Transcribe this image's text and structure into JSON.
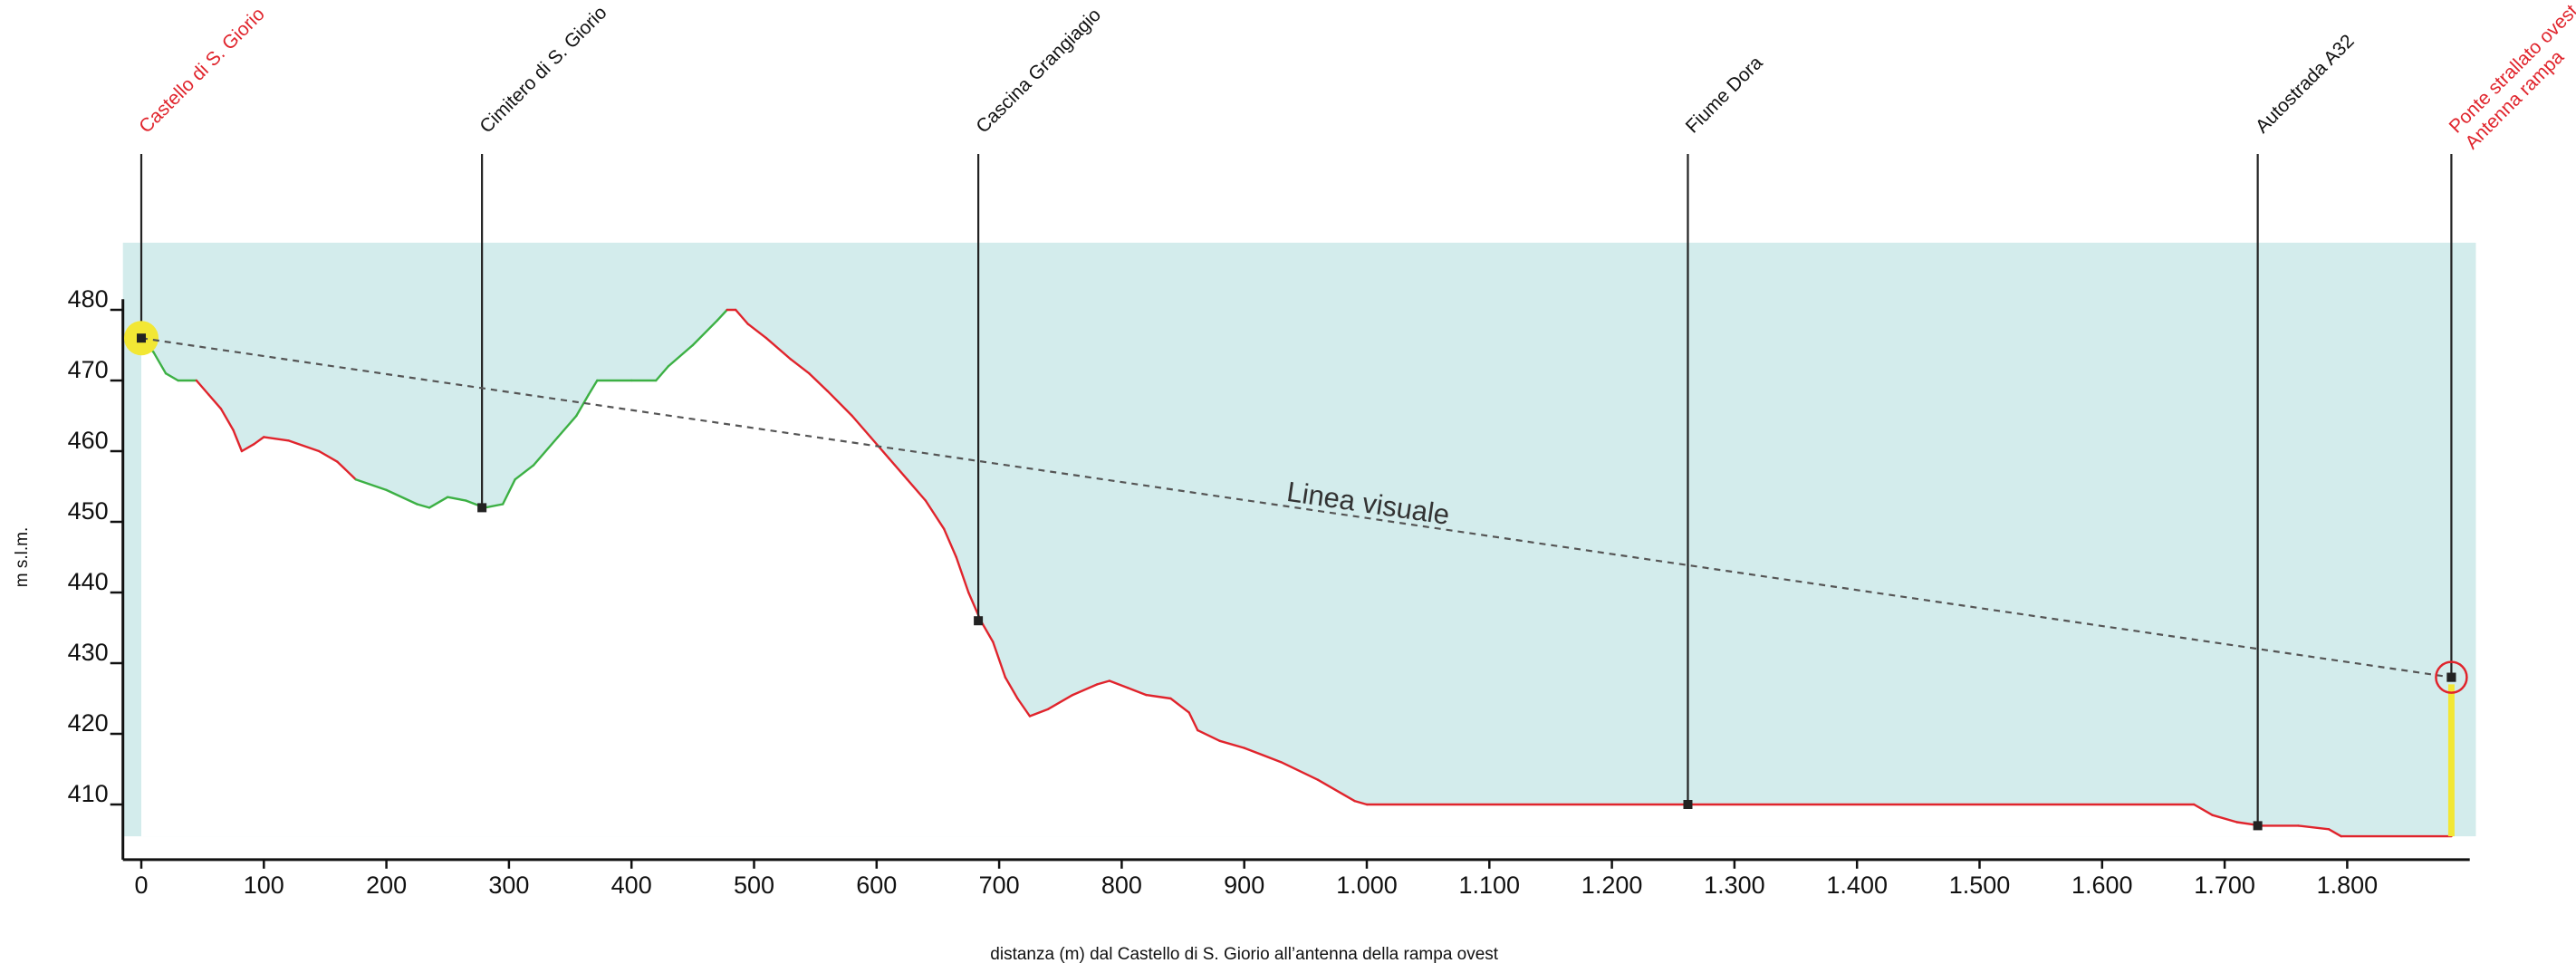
{
  "chart_data": {
    "type": "area",
    "xlabel": "distanza (m) dal Castello di S. Giorio all’antenna della rampa ovest",
    "ylabel": "m s.l.m.",
    "xlim": [
      -15,
      1900
    ],
    "ylim": [
      403,
      482
    ],
    "x_ticks": [
      {
        "value": 0,
        "label": "0"
      },
      {
        "value": 100,
        "label": "100"
      },
      {
        "value": 200,
        "label": "200"
      },
      {
        "value": 300,
        "label": "300"
      },
      {
        "value": 400,
        "label": "400"
      },
      {
        "value": 500,
        "label": "500"
      },
      {
        "value": 600,
        "label": "600"
      },
      {
        "value": 700,
        "label": "700"
      },
      {
        "value": 800,
        "label": "800"
      },
      {
        "value": 900,
        "label": "900"
      },
      {
        "value": 1000,
        "label": "1.000"
      },
      {
        "value": 1100,
        "label": "1.100"
      },
      {
        "value": 1200,
        "label": "1.200"
      },
      {
        "value": 1300,
        "label": "1.300"
      },
      {
        "value": 1400,
        "label": "1.400"
      },
      {
        "value": 1500,
        "label": "1.500"
      },
      {
        "value": 1600,
        "label": "1.600"
      },
      {
        "value": 1700,
        "label": "1.700"
      },
      {
        "value": 1800,
        "label": "1.800"
      }
    ],
    "y_ticks": [
      {
        "value": 410,
        "label": "410"
      },
      {
        "value": 420,
        "label": "420"
      },
      {
        "value": 430,
        "label": "430"
      },
      {
        "value": 440,
        "label": "440"
      },
      {
        "value": 450,
        "label": "450"
      },
      {
        "value": 460,
        "label": "460"
      },
      {
        "value": 470,
        "label": "470"
      },
      {
        "value": 480,
        "label": "480"
      }
    ],
    "visibility_zone": {
      "x_range": [
        -15,
        1905
      ],
      "y_range": [
        405.5,
        489.5
      ],
      "color": "#d3ecec"
    },
    "terrain_profile": [
      {
        "x": 0,
        "y": 476,
        "visible": true
      },
      {
        "x": 10,
        "y": 474,
        "visible": true
      },
      {
        "x": 20,
        "y": 471,
        "visible": true
      },
      {
        "x": 30,
        "y": 470,
        "visible": true
      },
      {
        "x": 45,
        "y": 470,
        "visible": false
      },
      {
        "x": 55,
        "y": 468,
        "visible": false
      },
      {
        "x": 65,
        "y": 466,
        "visible": false
      },
      {
        "x": 75,
        "y": 463,
        "visible": false
      },
      {
        "x": 82,
        "y": 460,
        "visible": false
      },
      {
        "x": 92,
        "y": 461,
        "visible": false
      },
      {
        "x": 100,
        "y": 462,
        "visible": false
      },
      {
        "x": 120,
        "y": 461.5,
        "visible": false
      },
      {
        "x": 145,
        "y": 460,
        "visible": false
      },
      {
        "x": 160,
        "y": 458.5,
        "visible": false
      },
      {
        "x": 175,
        "y": 456,
        "visible": true
      },
      {
        "x": 200,
        "y": 454.5,
        "visible": true
      },
      {
        "x": 225,
        "y": 452.5,
        "visible": true
      },
      {
        "x": 235,
        "y": 452,
        "visible": true
      },
      {
        "x": 250,
        "y": 453.5,
        "visible": true
      },
      {
        "x": 265,
        "y": 453,
        "visible": true
      },
      {
        "x": 280,
        "y": 452,
        "visible": true
      },
      {
        "x": 295,
        "y": 452.5,
        "visible": true
      },
      {
        "x": 305,
        "y": 456,
        "visible": true
      },
      {
        "x": 320,
        "y": 458,
        "visible": true
      },
      {
        "x": 340,
        "y": 462,
        "visible": true
      },
      {
        "x": 355,
        "y": 465,
        "visible": true
      },
      {
        "x": 365,
        "y": 468,
        "visible": true
      },
      {
        "x": 372,
        "y": 470,
        "visible": true
      },
      {
        "x": 400,
        "y": 470,
        "visible": true
      },
      {
        "x": 420,
        "y": 470,
        "visible": true
      },
      {
        "x": 430,
        "y": 472,
        "visible": true
      },
      {
        "x": 450,
        "y": 475,
        "visible": true
      },
      {
        "x": 470,
        "y": 478.5,
        "visible": true
      },
      {
        "x": 478,
        "y": 480,
        "visible": false
      },
      {
        "x": 485,
        "y": 480,
        "visible": false
      },
      {
        "x": 495,
        "y": 478,
        "visible": false
      },
      {
        "x": 510,
        "y": 476,
        "visible": false
      },
      {
        "x": 530,
        "y": 473,
        "visible": false
      },
      {
        "x": 545,
        "y": 471,
        "visible": false
      },
      {
        "x": 560,
        "y": 468.5,
        "visible": false
      },
      {
        "x": 580,
        "y": 465,
        "visible": false
      },
      {
        "x": 595,
        "y": 462,
        "visible": false
      },
      {
        "x": 610,
        "y": 459,
        "visible": false
      },
      {
        "x": 625,
        "y": 456,
        "visible": false
      },
      {
        "x": 640,
        "y": 453,
        "visible": false
      },
      {
        "x": 655,
        "y": 449,
        "visible": false
      },
      {
        "x": 665,
        "y": 445,
        "visible": false
      },
      {
        "x": 675,
        "y": 440,
        "visible": false
      },
      {
        "x": 685,
        "y": 436,
        "visible": false
      },
      {
        "x": 695,
        "y": 433,
        "visible": false
      },
      {
        "x": 705,
        "y": 428,
        "visible": false
      },
      {
        "x": 715,
        "y": 425,
        "visible": false
      },
      {
        "x": 725,
        "y": 422.5,
        "visible": false
      },
      {
        "x": 740,
        "y": 423.5,
        "visible": false
      },
      {
        "x": 760,
        "y": 425.5,
        "visible": false
      },
      {
        "x": 780,
        "y": 427,
        "visible": false
      },
      {
        "x": 790,
        "y": 427.5,
        "visible": false
      },
      {
        "x": 805,
        "y": 426.5,
        "visible": false
      },
      {
        "x": 820,
        "y": 425.5,
        "visible": false
      },
      {
        "x": 840,
        "y": 425,
        "visible": false
      },
      {
        "x": 855,
        "y": 423,
        "visible": false
      },
      {
        "x": 862,
        "y": 420.5,
        "visible": false
      },
      {
        "x": 880,
        "y": 419,
        "visible": false
      },
      {
        "x": 900,
        "y": 418,
        "visible": false
      },
      {
        "x": 930,
        "y": 416,
        "visible": false
      },
      {
        "x": 960,
        "y": 413.5,
        "visible": false
      },
      {
        "x": 990,
        "y": 410.5,
        "visible": false
      },
      {
        "x": 1000,
        "y": 410,
        "visible": false
      },
      {
        "x": 1675,
        "y": 410,
        "visible": false
      },
      {
        "x": 1690,
        "y": 408.5,
        "visible": false
      },
      {
        "x": 1710,
        "y": 407.5,
        "visible": false
      },
      {
        "x": 1730,
        "y": 407,
        "visible": false
      },
      {
        "x": 1760,
        "y": 407,
        "visible": false
      },
      {
        "x": 1785,
        "y": 406.5,
        "visible": false
      },
      {
        "x": 1795,
        "y": 405.5,
        "visible": false
      },
      {
        "x": 1885,
        "y": 405.5,
        "visible": false
      }
    ],
    "terrain_colors": {
      "visible": "#3cb044",
      "hidden": "#e0242c"
    },
    "line_of_sight": {
      "label": "Linea visuale",
      "from": {
        "x": 0,
        "y": 476
      },
      "to": {
        "x": 1885,
        "y": 428
      },
      "color": "#555555"
    },
    "observer_highlight": {
      "x": 0,
      "y": 476,
      "color": "#f2e734"
    },
    "target_highlight": {
      "x": 1885,
      "y": 428,
      "color": "#e0242c"
    },
    "antenna_mast": {
      "x": 1885,
      "y_from": 405.5,
      "y_to": 427,
      "color": "#f2e734"
    },
    "markers": [
      {
        "x": 0,
        "y": 476,
        "label_lines": [
          "Castello di S. Giorio"
        ],
        "color": "#e0242c"
      },
      {
        "x": 278,
        "y": 452,
        "label_lines": [
          "Cimitero di S. Giorio"
        ],
        "color": "#111111"
      },
      {
        "x": 683,
        "y": 436,
        "label_lines": [
          "Cascina Grangiagio"
        ],
        "color": "#111111"
      },
      {
        "x": 1262,
        "y": 410,
        "label_lines": [
          "Fiume Dora"
        ],
        "color": "#111111"
      },
      {
        "x": 1727,
        "y": 407,
        "label_lines": [
          "Autostrada A32"
        ],
        "color": "#111111"
      },
      {
        "x": 1885,
        "y": 428,
        "label_lines": [
          "Ponte strallato ovest",
          "Antenna rampa"
        ],
        "color": "#e0242c"
      }
    ]
  }
}
